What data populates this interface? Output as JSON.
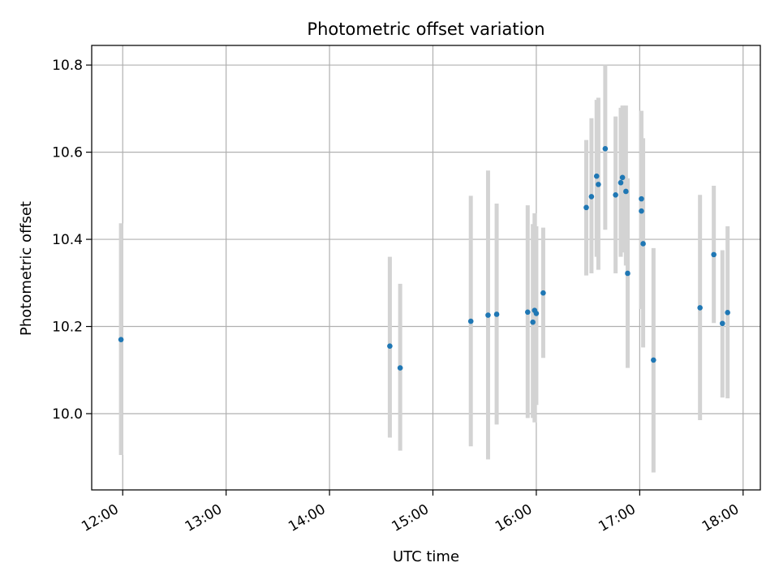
{
  "chart_data": {
    "type": "scatter",
    "title": "Photometric offset variation",
    "xlabel": "UTC time",
    "ylabel": "Photometric offset",
    "xlim": [
      "11:42",
      "18:10"
    ],
    "ylim": [
      9.825,
      10.845
    ],
    "grid": true,
    "x_ticks": [
      "12:00",
      "13:00",
      "14:00",
      "15:00",
      "16:00",
      "17:00",
      "18:00"
    ],
    "y_ticks": [
      10.0,
      10.2,
      10.4,
      10.6,
      10.8
    ],
    "y_tick_labels": [
      "10.0",
      "10.2",
      "10.4",
      "10.6",
      "10.8"
    ],
    "colors": {
      "point": "#1f77b4",
      "errorbar": "#d3d3d3",
      "grid": "#b0b0b0",
      "axes": "#000000"
    },
    "series": [
      {
        "points": [
          {
            "x": "11:59",
            "y": 10.17,
            "lo": 9.905,
            "hi": 10.437
          },
          {
            "x": "14:35",
            "y": 10.155,
            "lo": 9.945,
            "hi": 10.36
          },
          {
            "x": "14:41",
            "y": 10.105,
            "lo": 9.915,
            "hi": 10.298
          },
          {
            "x": "15:22",
            "y": 10.212,
            "lo": 9.925,
            "hi": 10.5
          },
          {
            "x": "15:32",
            "y": 10.226,
            "lo": 9.895,
            "hi": 10.558
          },
          {
            "x": "15:37",
            "y": 10.228,
            "lo": 9.975,
            "hi": 10.482
          },
          {
            "x": "15:55",
            "y": 10.233,
            "lo": 9.99,
            "hi": 10.478
          },
          {
            "x": "15:58",
            "y": 10.21,
            "lo": 9.99,
            "hi": 10.435
          },
          {
            "x": "15:59",
            "y": 10.237,
            "lo": 9.98,
            "hi": 10.46
          },
          {
            "x": "16:00",
            "y": 10.23,
            "lo": 10.02,
            "hi": 10.43
          },
          {
            "x": "16:04",
            "y": 10.277,
            "lo": 10.128,
            "hi": 10.427
          },
          {
            "x": "16:29",
            "y": 10.473,
            "lo": 10.317,
            "hi": 10.628
          },
          {
            "x": "16:32",
            "y": 10.498,
            "lo": 10.322,
            "hi": 10.678
          },
          {
            "x": "16:35",
            "y": 10.545,
            "lo": 10.36,
            "hi": 10.72
          },
          {
            "x": "16:36",
            "y": 10.526,
            "lo": 10.33,
            "hi": 10.725
          },
          {
            "x": "16:40",
            "y": 10.608,
            "lo": 10.422,
            "hi": 10.8
          },
          {
            "x": "16:46",
            "y": 10.502,
            "lo": 10.322,
            "hi": 10.682
          },
          {
            "x": "16:49",
            "y": 10.53,
            "lo": 10.36,
            "hi": 10.702
          },
          {
            "x": "16:50",
            "y": 10.542,
            "lo": 10.37,
            "hi": 10.707
          },
          {
            "x": "16:52",
            "y": 10.51,
            "lo": 10.34,
            "hi": 10.707
          },
          {
            "x": "16:53",
            "y": 10.322,
            "lo": 10.105,
            "hi": 10.54
          },
          {
            "x": "17:01",
            "y": 10.493,
            "lo": 10.29,
            "hi": 10.695
          },
          {
            "x": "17:01",
            "y": 10.465,
            "lo": 10.24,
            "hi": 10.632
          },
          {
            "x": "17:02",
            "y": 10.39,
            "lo": 10.152,
            "hi": 10.632
          },
          {
            "x": "17:08",
            "y": 10.123,
            "lo": 9.865,
            "hi": 10.38
          },
          {
            "x": "17:35",
            "y": 10.243,
            "lo": 9.985,
            "hi": 10.502
          },
          {
            "x": "17:43",
            "y": 10.365,
            "lo": 10.208,
            "hi": 10.523
          },
          {
            "x": "17:48",
            "y": 10.207,
            "lo": 10.037,
            "hi": 10.375
          },
          {
            "x": "17:51",
            "y": 10.232,
            "lo": 10.035,
            "hi": 10.43
          }
        ]
      }
    ]
  }
}
